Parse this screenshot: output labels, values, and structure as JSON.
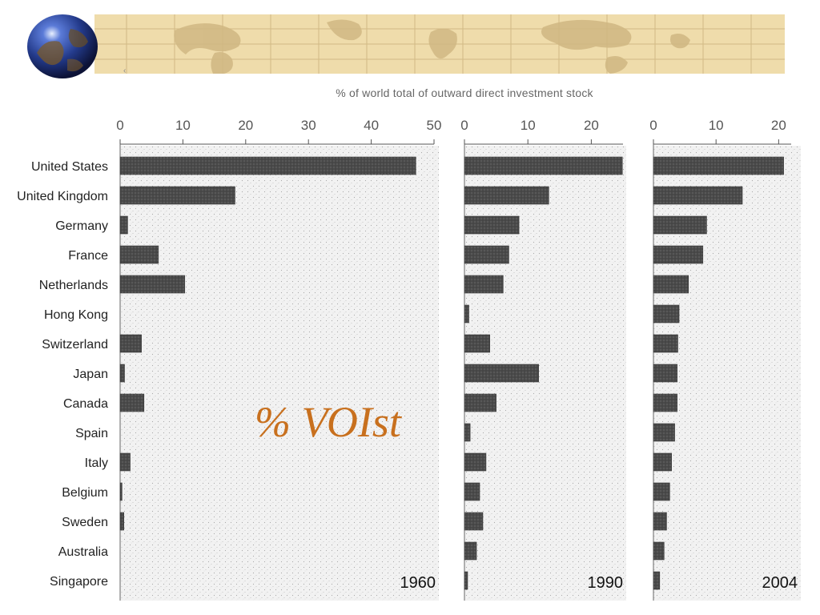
{
  "header": {
    "supertitle": "% of world total of outward direct investment stock",
    "overlay_note": "% VOIst",
    "banner_icon": "world-map-banner",
    "logo_icon": "globe-icon"
  },
  "colors": {
    "bar": "#4a4a4a",
    "panel_shade": "#e6e6e6",
    "banner": "#efdcab",
    "overlay_note": "#c8701e"
  },
  "chart_data": {
    "type": "bar",
    "orientation": "horizontal",
    "title": "% of world total of outward direct investment stock",
    "categories": [
      "United States",
      "United Kingdom",
      "Germany",
      "France",
      "Netherlands",
      "Hong Kong",
      "Switzerland",
      "Japan",
      "Canada",
      "Spain",
      "Italy",
      "Belgium",
      "Sweden",
      "Australia",
      "Singapore"
    ],
    "panels": [
      {
        "name": "1960",
        "xlim": [
          0,
          50
        ],
        "ticks": [
          0,
          10,
          20,
          30,
          40,
          50
        ],
        "values": [
          47.1,
          18.3,
          1.2,
          6.1,
          10.3,
          0,
          3.4,
          0.7,
          3.8,
          0,
          1.6,
          0.3,
          0.6,
          0,
          0
        ]
      },
      {
        "name": "1990",
        "xlim": [
          0,
          25
        ],
        "ticks": [
          0,
          10,
          20
        ],
        "values": [
          24.9,
          13.3,
          8.6,
          7.0,
          6.1,
          0.7,
          4.0,
          11.7,
          5.0,
          0.9,
          3.4,
          2.4,
          2.9,
          1.9,
          0.5
        ]
      },
      {
        "name": "2004",
        "xlim": [
          0,
          22
        ],
        "ticks": [
          0,
          10,
          20
        ],
        "values": [
          20.8,
          14.2,
          8.5,
          7.9,
          5.6,
          4.1,
          3.9,
          3.8,
          3.8,
          3.4,
          2.9,
          2.6,
          2.1,
          1.7,
          1.0
        ]
      }
    ],
    "legend": "none",
    "grid": false
  }
}
